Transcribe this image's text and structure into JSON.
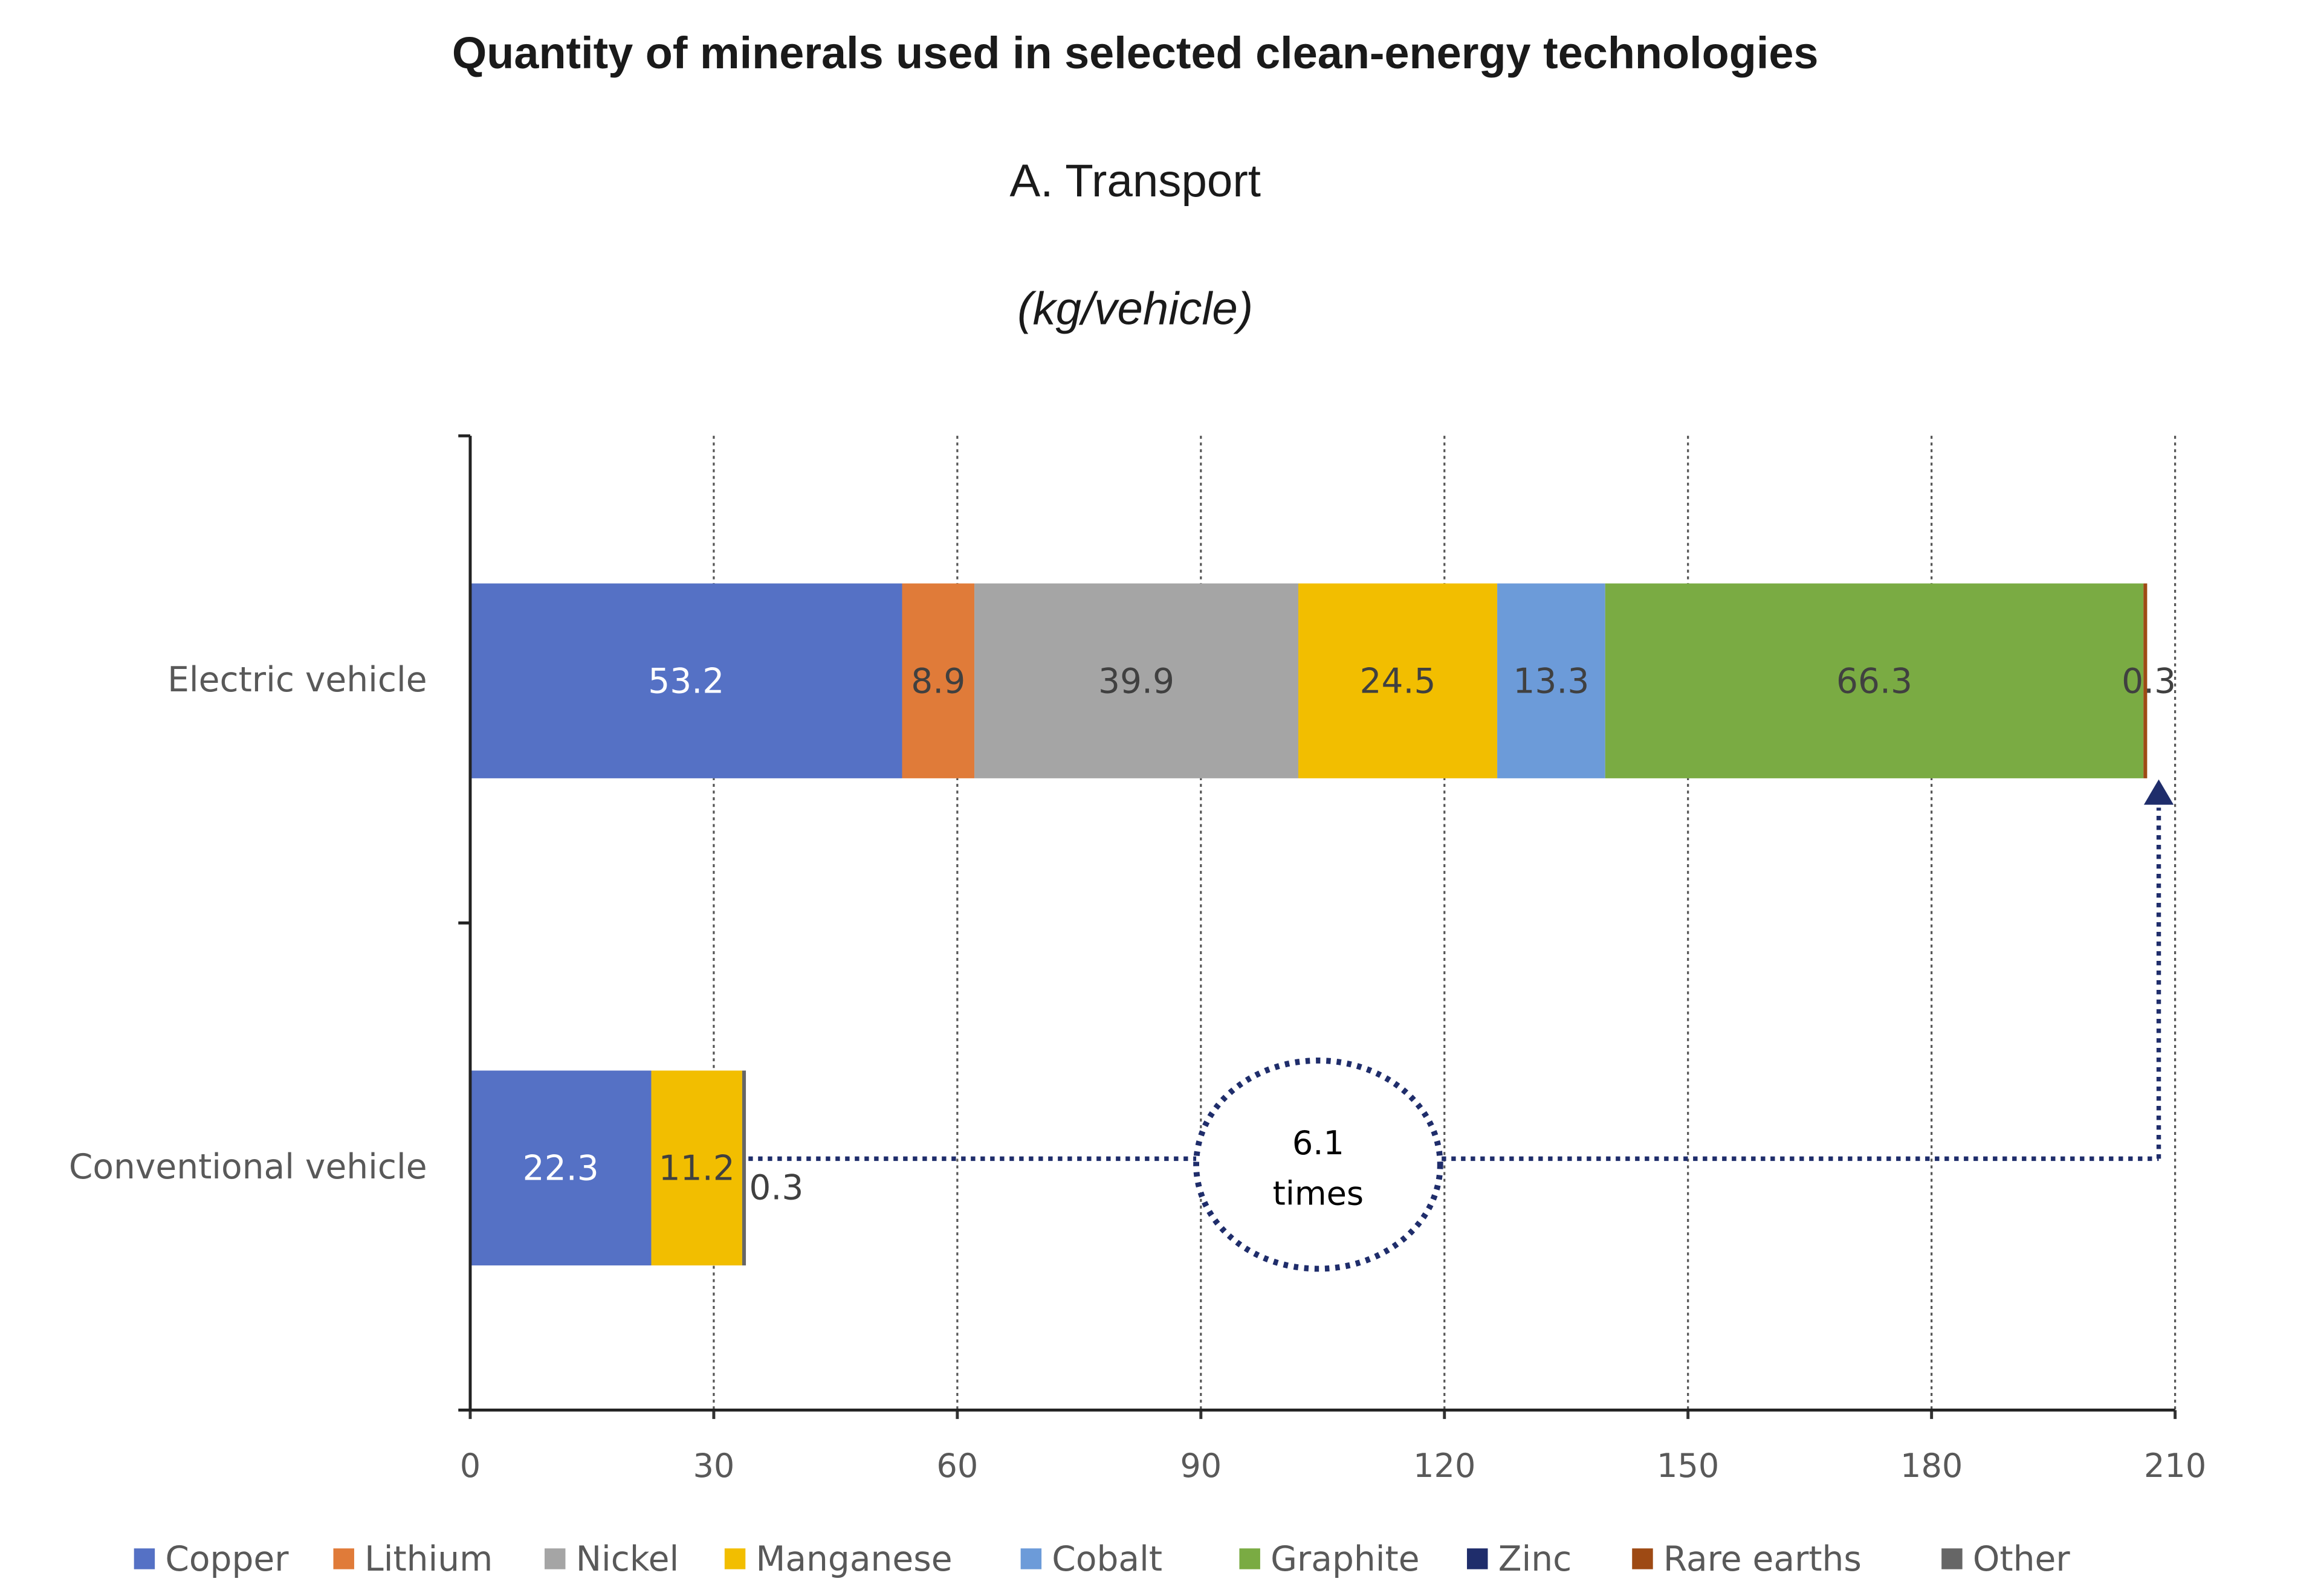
{
  "chart_data": {
    "type": "bar",
    "orientation": "horizontal",
    "stacked": true,
    "title": "Quantity of minerals used in selected clean-energy technologies",
    "subtitle": "A. Transport",
    "unit": "(kg/vehicle)",
    "categories": [
      "Electric vehicle",
      "Conventional vehicle"
    ],
    "xlim": [
      0,
      210
    ],
    "xticks": [
      0,
      30,
      60,
      90,
      120,
      150,
      180,
      210
    ],
    "grid": "vertical dotted",
    "legend_position": "bottom",
    "series": [
      {
        "name": "Copper",
        "color": "#5571C5",
        "values": [
          53.2,
          22.3
        ],
        "label_color": "#ffffff"
      },
      {
        "name": "Lithium",
        "color": "#E07B39",
        "values": [
          8.9,
          0
        ],
        "label_color": "#404040"
      },
      {
        "name": "Nickel",
        "color": "#A5A5A5",
        "values": [
          39.9,
          0
        ],
        "label_color": "#404040"
      },
      {
        "name": "Manganese",
        "color": "#F2BE00",
        "values": [
          24.5,
          11.2
        ],
        "label_color": "#404040"
      },
      {
        "name": "Cobalt",
        "color": "#6C9BD9",
        "values": [
          13.3,
          0
        ],
        "label_color": "#404040"
      },
      {
        "name": "Graphite",
        "color": "#7AAB43",
        "values": [
          66.3,
          0
        ],
        "label_color": "#404040"
      },
      {
        "name": "Zinc",
        "color": "#1F2D6B",
        "values": [
          0,
          0
        ],
        "label_color": "#404040"
      },
      {
        "name": "Rare earths",
        "color": "#9E4A14",
        "values": [
          0.3,
          0
        ],
        "label_color": "#404040"
      },
      {
        "name": "Other",
        "color": "#666666",
        "values": [
          0,
          0.3
        ],
        "label_color": "#404040"
      }
    ],
    "annotation": {
      "line1": "6.1",
      "line2": "times",
      "color": "#1F2D6B"
    }
  }
}
